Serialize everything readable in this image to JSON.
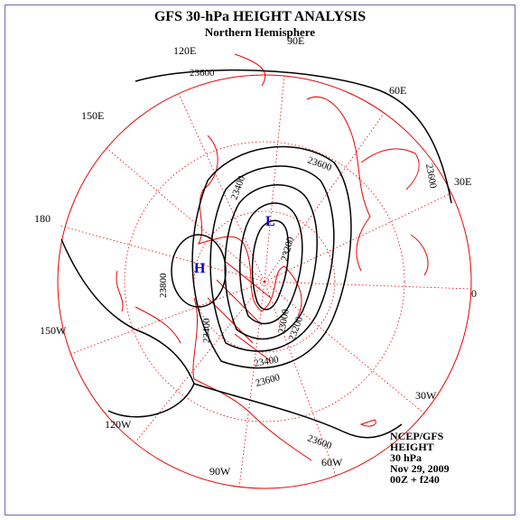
{
  "header": {
    "title": "GFS 30-hPa HEIGHT ANALYSIS",
    "subtitle": "Northern Hemisphere"
  },
  "longitude_labels": [
    "90E",
    "120E",
    "60E",
    "150E",
    "30E",
    "180",
    "0",
    "150W",
    "30W",
    "120W",
    "90W",
    "60W"
  ],
  "contour_labels": [
    "23600",
    "23600",
    "23600",
    "23400",
    "23800",
    "23200",
    "23000",
    "23200",
    "23400",
    "23400",
    "23600",
    "23600"
  ],
  "centers": {
    "high": "H",
    "low": "L"
  },
  "info": [
    "NCEP/GFS",
    "HEIGHT",
    "30 hPa",
    "Nov 29, 2009",
    "00Z + f240"
  ]
}
